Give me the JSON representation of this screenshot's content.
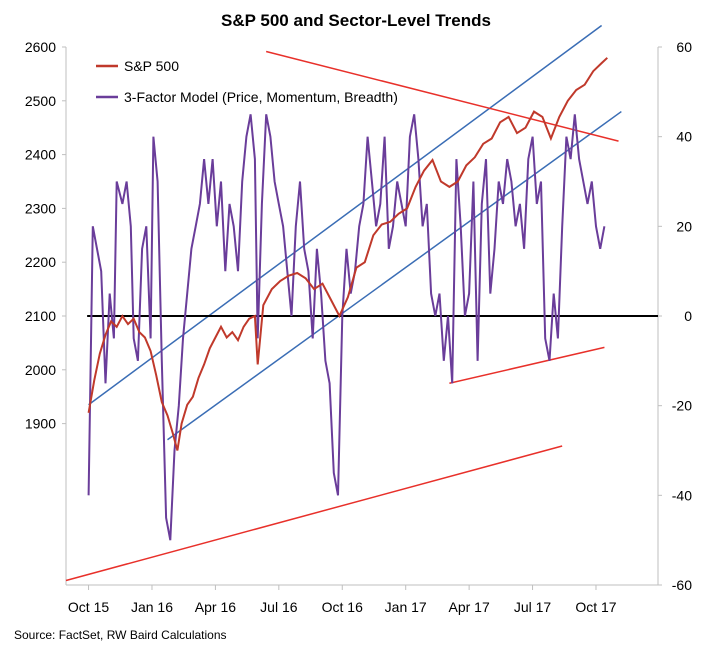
{
  "chart_data": {
    "type": "line",
    "title": "S&P 500 and Sector-Level Trends",
    "source": "Source: FactSet, RW Baird Calculations",
    "x_tick_labels": [
      "Oct 15",
      "Jan 16",
      "Apr 16",
      "Jul 16",
      "Oct 16",
      "Jan 17",
      "Apr 17",
      "Jul 17",
      "Oct 17"
    ],
    "left_axis": {
      "ticks": [
        1900,
        2000,
        2100,
        2200,
        2300,
        2400,
        2500,
        2600
      ],
      "range": [
        1600,
        2600
      ]
    },
    "right_axis": {
      "ticks": [
        -60,
        -40,
        -20,
        0,
        20,
        40,
        60
      ],
      "range": [
        -60,
        60
      ]
    },
    "legend": {
      "placement": "top-left"
    },
    "colors": {
      "sp500": "#c0392b",
      "model": "#6a3d9a",
      "channel": "#3a6db5",
      "trend": "#e8302a",
      "zero": "#000000"
    },
    "series": [
      {
        "name": "S&P 500",
        "axis": "left",
        "points": [
          [
            0,
            1920
          ],
          [
            0.2,
            1980
          ],
          [
            0.4,
            2030
          ],
          [
            0.6,
            2065
          ],
          [
            0.8,
            2090
          ],
          [
            1.0,
            2080
          ],
          [
            1.2,
            2100
          ],
          [
            1.4,
            2085
          ],
          [
            1.6,
            2095
          ],
          [
            1.8,
            2070
          ],
          [
            2.0,
            2060
          ],
          [
            2.2,
            2035
          ],
          [
            2.4,
            1990
          ],
          [
            2.6,
            1940
          ],
          [
            2.8,
            1915
          ],
          [
            3.0,
            1880
          ],
          [
            3.15,
            1850
          ],
          [
            3.3,
            1900
          ],
          [
            3.5,
            1935
          ],
          [
            3.7,
            1950
          ],
          [
            3.9,
            1985
          ],
          [
            4.1,
            2010
          ],
          [
            4.3,
            2040
          ],
          [
            4.5,
            2060
          ],
          [
            4.7,
            2080
          ],
          [
            4.9,
            2060
          ],
          [
            5.1,
            2070
          ],
          [
            5.3,
            2055
          ],
          [
            5.5,
            2080
          ],
          [
            5.7,
            2095
          ],
          [
            5.9,
            2100
          ],
          [
            6.0,
            2010
          ],
          [
            6.2,
            2120
          ],
          [
            6.5,
            2150
          ],
          [
            6.8,
            2165
          ],
          [
            7.1,
            2175
          ],
          [
            7.4,
            2180
          ],
          [
            7.7,
            2170
          ],
          [
            8.0,
            2150
          ],
          [
            8.3,
            2160
          ],
          [
            8.6,
            2130
          ],
          [
            8.9,
            2100
          ],
          [
            9.2,
            2135
          ],
          [
            9.5,
            2190
          ],
          [
            9.8,
            2200
          ],
          [
            10.1,
            2250
          ],
          [
            10.4,
            2270
          ],
          [
            10.7,
            2275
          ],
          [
            11.0,
            2290
          ],
          [
            11.3,
            2300
          ],
          [
            11.6,
            2340
          ],
          [
            11.9,
            2370
          ],
          [
            12.2,
            2390
          ],
          [
            12.5,
            2350
          ],
          [
            12.8,
            2340
          ],
          [
            13.1,
            2350
          ],
          [
            13.4,
            2380
          ],
          [
            13.7,
            2395
          ],
          [
            14.0,
            2420
          ],
          [
            14.3,
            2430
          ],
          [
            14.6,
            2460
          ],
          [
            14.9,
            2470
          ],
          [
            15.2,
            2440
          ],
          [
            15.5,
            2450
          ],
          [
            15.8,
            2480
          ],
          [
            16.1,
            2470
          ],
          [
            16.4,
            2430
          ],
          [
            16.7,
            2470
          ],
          [
            17.0,
            2500
          ],
          [
            17.3,
            2520
          ],
          [
            17.6,
            2530
          ],
          [
            17.9,
            2555
          ],
          [
            18.2,
            2570
          ],
          [
            18.4,
            2580
          ]
        ]
      },
      {
        "name": "3-Factor Model (Price, Momentum, Breadth)",
        "axis": "right",
        "points": [
          [
            0,
            -40
          ],
          [
            0.15,
            20
          ],
          [
            0.3,
            15
          ],
          [
            0.45,
            10
          ],
          [
            0.6,
            -15
          ],
          [
            0.75,
            5
          ],
          [
            0.9,
            -5
          ],
          [
            1.0,
            30
          ],
          [
            1.2,
            25
          ],
          [
            1.35,
            30
          ],
          [
            1.5,
            20
          ],
          [
            1.6,
            -5
          ],
          [
            1.75,
            -10
          ],
          [
            1.9,
            15
          ],
          [
            2.05,
            20
          ],
          [
            2.2,
            -5
          ],
          [
            2.3,
            40
          ],
          [
            2.45,
            30
          ],
          [
            2.6,
            -10
          ],
          [
            2.75,
            -45
          ],
          [
            2.9,
            -50
          ],
          [
            3.05,
            -30
          ],
          [
            3.2,
            -20
          ],
          [
            3.35,
            -5
          ],
          [
            3.5,
            5
          ],
          [
            3.65,
            15
          ],
          [
            3.8,
            20
          ],
          [
            3.95,
            25
          ],
          [
            4.1,
            35
          ],
          [
            4.25,
            25
          ],
          [
            4.4,
            35
          ],
          [
            4.55,
            20
          ],
          [
            4.7,
            30
          ],
          [
            4.85,
            10
          ],
          [
            5.0,
            25
          ],
          [
            5.15,
            20
          ],
          [
            5.3,
            10
          ],
          [
            5.45,
            30
          ],
          [
            5.6,
            40
          ],
          [
            5.75,
            45
          ],
          [
            5.9,
            35
          ],
          [
            6.0,
            -5
          ],
          [
            6.15,
            25
          ],
          [
            6.3,
            45
          ],
          [
            6.45,
            40
          ],
          [
            6.6,
            30
          ],
          [
            6.75,
            25
          ],
          [
            6.9,
            20
          ],
          [
            7.05,
            10
          ],
          [
            7.2,
            0
          ],
          [
            7.35,
            20
          ],
          [
            7.5,
            30
          ],
          [
            7.65,
            15
          ],
          [
            7.8,
            10
          ],
          [
            7.95,
            -5
          ],
          [
            8.1,
            15
          ],
          [
            8.25,
            5
          ],
          [
            8.4,
            -10
          ],
          [
            8.55,
            -15
          ],
          [
            8.7,
            -35
          ],
          [
            8.85,
            -40
          ],
          [
            9.0,
            0
          ],
          [
            9.15,
            15
          ],
          [
            9.3,
            5
          ],
          [
            9.45,
            10
          ],
          [
            9.6,
            20
          ],
          [
            9.75,
            25
          ],
          [
            9.9,
            40
          ],
          [
            10.05,
            30
          ],
          [
            10.2,
            20
          ],
          [
            10.35,
            25
          ],
          [
            10.5,
            40
          ],
          [
            10.65,
            15
          ],
          [
            10.8,
            20
          ],
          [
            10.95,
            30
          ],
          [
            11.1,
            25
          ],
          [
            11.25,
            20
          ],
          [
            11.4,
            40
          ],
          [
            11.55,
            45
          ],
          [
            11.7,
            35
          ],
          [
            11.85,
            20
          ],
          [
            12.0,
            25
          ],
          [
            12.15,
            5
          ],
          [
            12.3,
            0
          ],
          [
            12.45,
            5
          ],
          [
            12.6,
            -10
          ],
          [
            12.75,
            0
          ],
          [
            12.9,
            -15
          ],
          [
            13.05,
            35
          ],
          [
            13.2,
            20
          ],
          [
            13.35,
            0
          ],
          [
            13.5,
            5
          ],
          [
            13.65,
            30
          ],
          [
            13.8,
            -10
          ],
          [
            13.95,
            25
          ],
          [
            14.1,
            35
          ],
          [
            14.25,
            5
          ],
          [
            14.4,
            15
          ],
          [
            14.55,
            30
          ],
          [
            14.7,
            25
          ],
          [
            14.85,
            35
          ],
          [
            15.0,
            30
          ],
          [
            15.15,
            20
          ],
          [
            15.3,
            25
          ],
          [
            15.45,
            15
          ],
          [
            15.6,
            35
          ],
          [
            15.75,
            40
          ],
          [
            15.9,
            25
          ],
          [
            16.05,
            30
          ],
          [
            16.2,
            -5
          ],
          [
            16.35,
            -10
          ],
          [
            16.5,
            5
          ],
          [
            16.65,
            -5
          ],
          [
            16.8,
            20
          ],
          [
            16.95,
            40
          ],
          [
            17.1,
            35
          ],
          [
            17.25,
            45
          ],
          [
            17.4,
            35
          ],
          [
            17.55,
            30
          ],
          [
            17.7,
            25
          ],
          [
            17.85,
            30
          ],
          [
            18.0,
            20
          ],
          [
            18.15,
            15
          ],
          [
            18.3,
            20
          ]
        ]
      }
    ],
    "trend_lines": [
      {
        "name": "channel-upper",
        "axis": "left",
        "from": [
          0,
          1935
        ],
        "to": [
          18.2,
          2640
        ]
      },
      {
        "name": "channel-lower",
        "axis": "left",
        "from": [
          2.8,
          1870
        ],
        "to": [
          18.9,
          2480
        ]
      },
      {
        "name": "model-upper",
        "axis": "right",
        "from": [
          6.3,
          59
        ],
        "to": [
          18.8,
          39
        ]
      },
      {
        "name": "model-lower-upper-channel",
        "axis": "right",
        "from": [
          12.8,
          -15
        ],
        "to": [
          18.3,
          -7
        ]
      },
      {
        "name": "model-lower-long",
        "axis": "right",
        "from": [
          -0.8,
          -59
        ],
        "to": [
          16.8,
          -29
        ]
      }
    ]
  }
}
